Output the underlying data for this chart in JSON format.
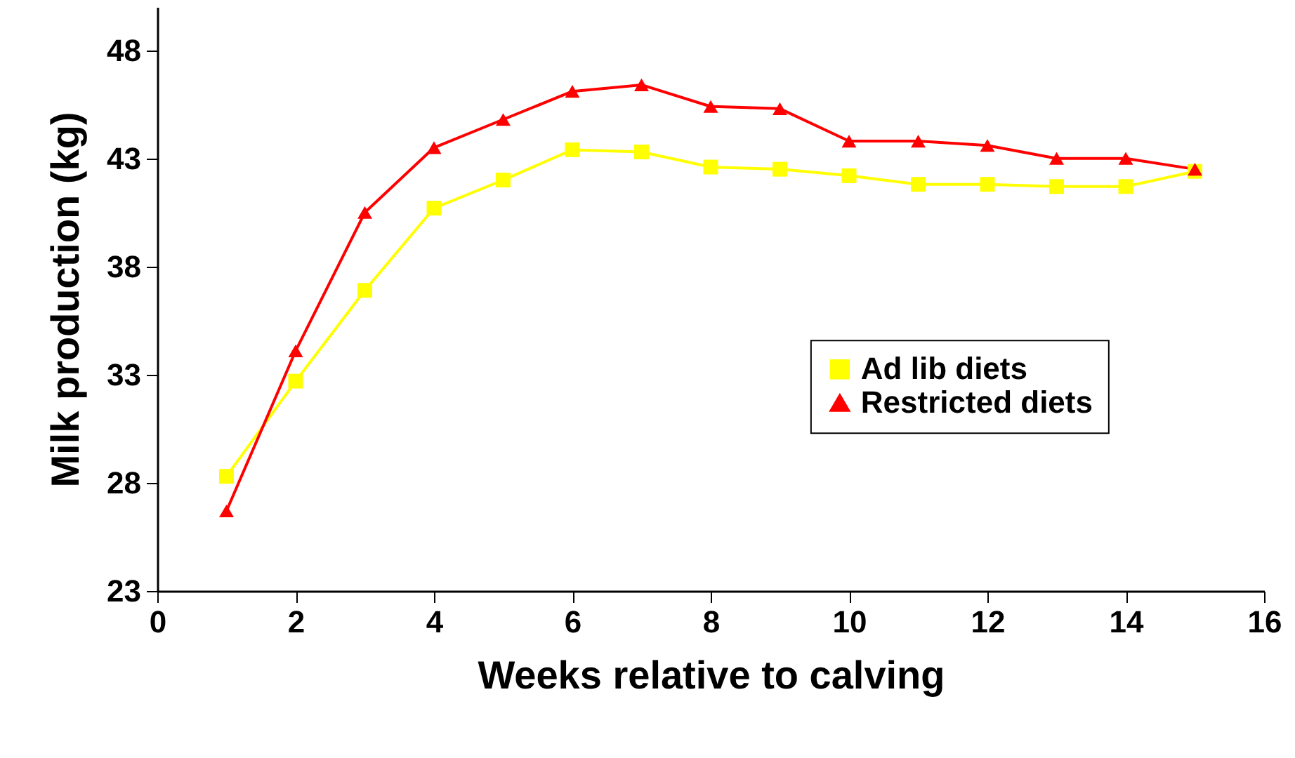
{
  "chart_data": {
    "type": "line",
    "xlabel": "Weeks relative to calving",
    "ylabel": "Milk production (kg)",
    "x": [
      1,
      2,
      3,
      4,
      5,
      6,
      7,
      8,
      9,
      10,
      11,
      12,
      13,
      14,
      15
    ],
    "series": [
      {
        "name": "Ad lib diets",
        "color": "#ffff00",
        "marker": "square",
        "values": [
          28.3,
          32.7,
          36.9,
          40.7,
          42.0,
          43.4,
          43.3,
          42.6,
          42.5,
          42.2,
          41.8,
          41.8,
          41.7,
          41.7,
          42.4
        ]
      },
      {
        "name": "Restricted diets",
        "color": "#ff0000",
        "marker": "triangle",
        "values": [
          26.7,
          34.1,
          40.5,
          43.5,
          44.8,
          46.1,
          46.4,
          45.4,
          45.3,
          43.8,
          43.8,
          43.6,
          43.0,
          43.0,
          42.5
        ]
      }
    ],
    "xlim": [
      0,
      16
    ],
    "xticks": [
      0,
      2,
      4,
      6,
      8,
      10,
      12,
      14,
      16
    ],
    "ylim": [
      23,
      50
    ],
    "yticks": [
      23,
      28,
      33,
      38,
      43,
      48
    ],
    "grid": false,
    "legend": "right",
    "line_style": "solid"
  }
}
